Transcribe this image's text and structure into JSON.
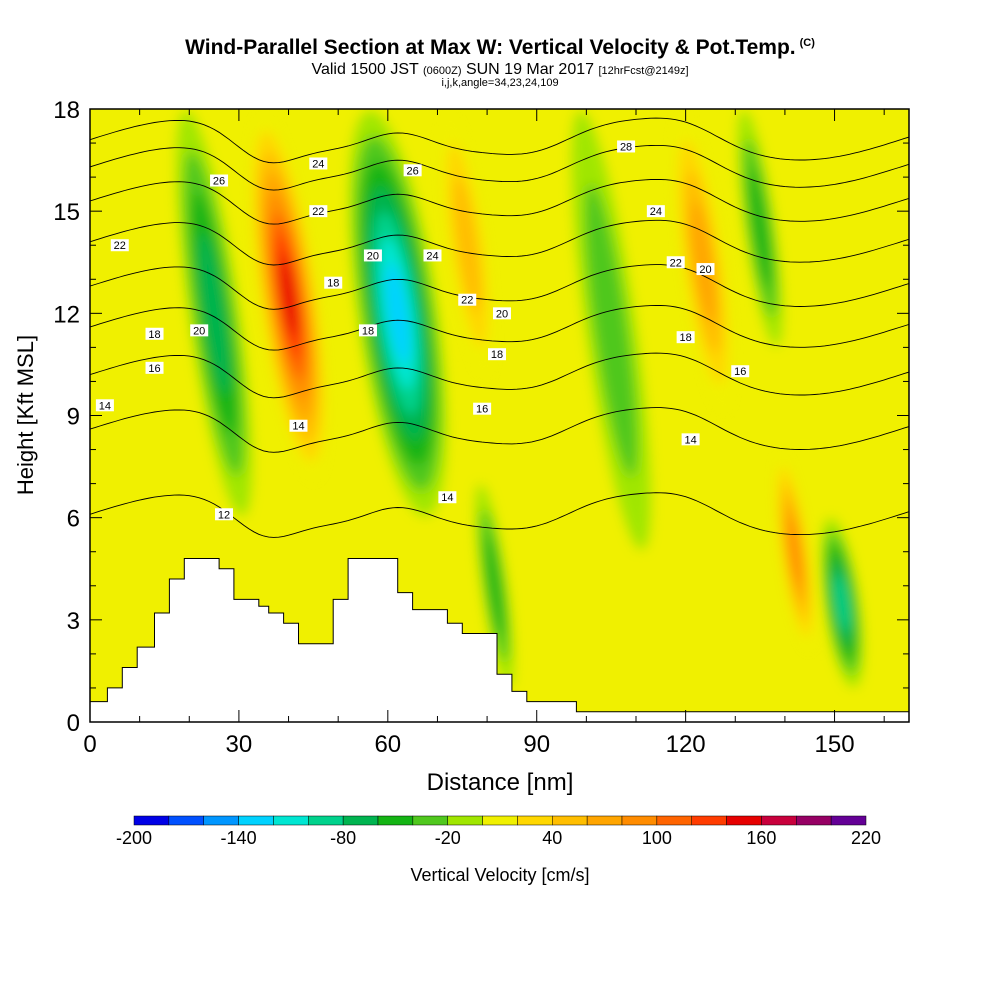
{
  "title": {
    "main": "Wind-Parallel Section at Max W: Vertical Velocity & Pot.Temp.",
    "copyright": "(C)",
    "valid_a": "Valid 1500 JST",
    "valid_b": "(0600Z)",
    "valid_c": "SUN 19 Mar 2017",
    "valid_d": "[12hrFcst@2149z]",
    "indices": "i,j,k,angle=34,23,24,109"
  },
  "chart_data": {
    "type": "heatmap",
    "xlabel": "Distance [nm]",
    "ylabel": "Height [Kft MSL]",
    "xlim": [
      0,
      165
    ],
    "ylim": [
      0,
      18
    ],
    "x_ticks": [
      0,
      30,
      60,
      90,
      120,
      150
    ],
    "y_ticks": [
      0,
      3,
      6,
      9,
      12,
      15,
      18
    ],
    "colorbar": {
      "label": "Vertical Velocity [cm/s]",
      "tick_labels": [
        "-200",
        "-140",
        "-80",
        "-20",
        "40",
        "100",
        "160",
        "220"
      ],
      "tick_values": [
        -200,
        -140,
        -80,
        -20,
        40,
        100,
        160,
        220
      ],
      "levels": [
        -200,
        -180,
        -160,
        -140,
        -120,
        -100,
        -80,
        -60,
        -40,
        -20,
        0,
        20,
        40,
        60,
        80,
        100,
        120,
        140,
        160,
        180,
        200,
        220
      ],
      "colors": [
        "#0000e6",
        "#0050ff",
        "#0096ff",
        "#00d2ff",
        "#00e6d2",
        "#00d28c",
        "#00b450",
        "#14b414",
        "#50c81e",
        "#a0e600",
        "#f0f000",
        "#ffd700",
        "#ffbe00",
        "#ffa500",
        "#ff8c00",
        "#ff6400",
        "#ff3c00",
        "#e60000",
        "#c8003c",
        "#960064",
        "#640096"
      ]
    },
    "vertical_velocity_features": [
      {
        "x_range": [
          20,
          30
        ],
        "y_range": [
          6,
          18
        ],
        "w": -70
      },
      {
        "x_range": [
          34,
          46
        ],
        "y_range": [
          7,
          18
        ],
        "w": 140
      },
      {
        "x_range": [
          54,
          70
        ],
        "y_range": [
          6,
          18
        ],
        "w": -130
      },
      {
        "x_range": [
          72,
          80
        ],
        "y_range": [
          10,
          18
        ],
        "w": 55
      },
      {
        "x_range": [
          79,
          84
        ],
        "y_range": [
          1,
          7
        ],
        "w": -50
      },
      {
        "x_range": [
          100,
          110
        ],
        "y_range": [
          5,
          18
        ],
        "w": -30
      },
      {
        "x_range": [
          119,
          128
        ],
        "y_range": [
          9,
          18
        ],
        "w": 65
      },
      {
        "x_range": [
          132,
          138
        ],
        "y_range": [
          11,
          18
        ],
        "w": -40
      },
      {
        "x_range": [
          139,
          145
        ],
        "y_range": [
          2,
          8
        ],
        "w": 80
      },
      {
        "x_range": [
          148,
          155
        ],
        "y_range": [
          1,
          6
        ],
        "w": -90
      }
    ],
    "background_w": 5,
    "theta_contours": {
      "levels": [
        12,
        14,
        16,
        18,
        20,
        22,
        24,
        26,
        28
      ],
      "labeled": [
        {
          "text": "26",
          "x": 26,
          "y": 15.9
        },
        {
          "text": "22",
          "x": 6,
          "y": 14.0
        },
        {
          "text": "18",
          "x": 13,
          "y": 11.4
        },
        {
          "text": "16",
          "x": 13,
          "y": 10.4
        },
        {
          "text": "14",
          "x": 3,
          "y": 9.3
        },
        {
          "text": "20",
          "x": 22,
          "y": 11.5
        },
        {
          "text": "12",
          "x": 27,
          "y": 6.1
        },
        {
          "text": "24",
          "x": 46,
          "y": 16.4
        },
        {
          "text": "22",
          "x": 46,
          "y": 15.0
        },
        {
          "text": "18",
          "x": 49,
          "y": 12.9
        },
        {
          "text": "14",
          "x": 42,
          "y": 8.7
        },
        {
          "text": "20",
          "x": 57,
          "y": 13.7
        },
        {
          "text": "18",
          "x": 56,
          "y": 11.5
        },
        {
          "text": "26",
          "x": 65,
          "y": 16.2
        },
        {
          "text": "24",
          "x": 69,
          "y": 13.7
        },
        {
          "text": "22",
          "x": 76,
          "y": 12.4
        },
        {
          "text": "20",
          "x": 83,
          "y": 12.0
        },
        {
          "text": "18",
          "x": 82,
          "y": 10.8
        },
        {
          "text": "16",
          "x": 79,
          "y": 9.2
        },
        {
          "text": "14",
          "x": 72,
          "y": 6.6
        },
        {
          "text": "28",
          "x": 108,
          "y": 16.9
        },
        {
          "text": "24",
          "x": 114,
          "y": 15.0
        },
        {
          "text": "22",
          "x": 118,
          "y": 13.5
        },
        {
          "text": "20",
          "x": 124,
          "y": 13.3
        },
        {
          "text": "18",
          "x": 120,
          "y": 11.3
        },
        {
          "text": "16",
          "x": 131,
          "y": 10.3
        },
        {
          "text": "14",
          "x": 121,
          "y": 8.3
        }
      ]
    },
    "terrain": [
      [
        0,
        0.6
      ],
      [
        3.5,
        0.6
      ],
      [
        3.5,
        1.0
      ],
      [
        6.5,
        1.0
      ],
      [
        6.5,
        1.6
      ],
      [
        9.5,
        1.6
      ],
      [
        9.5,
        2.2
      ],
      [
        13,
        2.2
      ],
      [
        13,
        3.2
      ],
      [
        16,
        3.2
      ],
      [
        16,
        4.2
      ],
      [
        19,
        4.2
      ],
      [
        19,
        4.8
      ],
      [
        26,
        4.8
      ],
      [
        26,
        4.5
      ],
      [
        29,
        4.5
      ],
      [
        29,
        3.6
      ],
      [
        34,
        3.6
      ],
      [
        34,
        3.4
      ],
      [
        36,
        3.4
      ],
      [
        36,
        3.2
      ],
      [
        39,
        3.2
      ],
      [
        39,
        2.9
      ],
      [
        42,
        2.9
      ],
      [
        42,
        2.3
      ],
      [
        49,
        2.3
      ],
      [
        49,
        3.6
      ],
      [
        52,
        3.6
      ],
      [
        52,
        4.8
      ],
      [
        62,
        4.8
      ],
      [
        62,
        3.8
      ],
      [
        65,
        3.8
      ],
      [
        65,
        3.3
      ],
      [
        72,
        3.3
      ],
      [
        72,
        2.9
      ],
      [
        75,
        2.9
      ],
      [
        75,
        2.6
      ],
      [
        82,
        2.6
      ],
      [
        82,
        1.4
      ],
      [
        85,
        1.4
      ],
      [
        85,
        0.9
      ],
      [
        88,
        0.9
      ],
      [
        88,
        0.6
      ],
      [
        98,
        0.6
      ],
      [
        98,
        0.3
      ],
      [
        165,
        0.3
      ]
    ]
  }
}
